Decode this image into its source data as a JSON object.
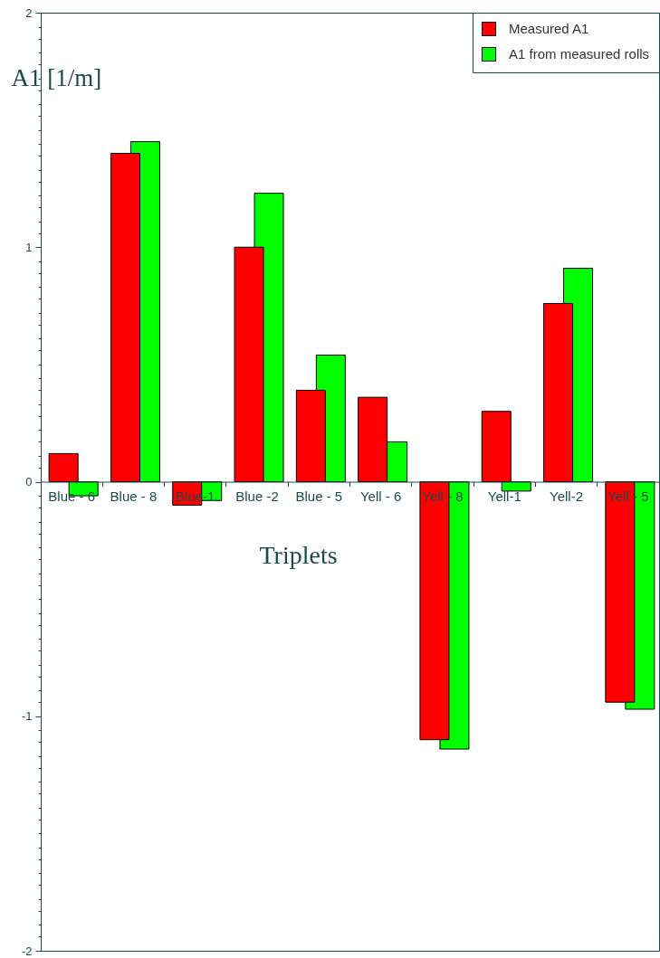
{
  "chart_data": {
    "type": "bar",
    "xlabel": "Triplets",
    "ylabel": "A1 [1/m]",
    "legend": "top right",
    "categories": [
      "Blue - 6",
      "Blue - 8",
      "Blue-1",
      "Blue -2",
      "Blue - 5",
      "Yell - 6",
      "Yell - 8",
      "Yell-1",
      "Yell-2",
      "Yell - 5"
    ],
    "series": [
      {
        "name": "Measured A1",
        "color": "#ff0000",
        "values": [
          0.12,
          1.4,
          -0.1,
          1.0,
          0.39,
          0.36,
          -1.1,
          0.3,
          0.76,
          -0.94
        ]
      },
      {
        "name": "A1 from measured rolls",
        "color": "#00ff00",
        "values": [
          -0.06,
          1.45,
          -0.08,
          1.23,
          0.54,
          0.17,
          -1.14,
          -0.04,
          0.91,
          -0.97
        ]
      }
    ],
    "ylim": [
      -2,
      2
    ],
    "yticks": [
      -2,
      {
        "value": -1.94,
        "label": null
      },
      {
        "value": -1.89,
        "label": null
      },
      {
        "value": -1.83,
        "label": null
      },
      {
        "value": -1.78,
        "label": null
      },
      {
        "value": -1.72,
        "label": null
      },
      {
        "value": -1.67,
        "label": null
      },
      {
        "value": -1.61,
        "label": null
      },
      {
        "value": -1.56,
        "label": null
      },
      {
        "value": -1.5,
        "label": null
      },
      {
        "value": -1.44,
        "label": null
      },
      {
        "value": -1.39,
        "label": null
      },
      {
        "value": -1.33,
        "label": null
      },
      {
        "value": -1.28,
        "label": null
      },
      {
        "value": -1.22,
        "label": null
      },
      {
        "value": -1.17,
        "label": null
      },
      {
        "value": -1.11,
        "label": null
      },
      {
        "value": -1.06,
        "label": null
      },
      -1,
      {
        "value": -0.94,
        "label": null
      },
      {
        "value": -0.89,
        "label": null
      },
      {
        "value": -0.83,
        "label": null
      },
      {
        "value": -0.78,
        "label": null
      },
      {
        "value": -0.72,
        "label": null
      },
      {
        "value": -0.67,
        "label": null
      },
      {
        "value": -0.61,
        "label": null
      },
      {
        "value": -0.56,
        "label": null
      },
      {
        "value": -0.5,
        "label": null
      },
      {
        "value": -0.44,
        "label": null
      },
      {
        "value": -0.39,
        "label": null
      },
      {
        "value": -0.33,
        "label": null
      },
      {
        "value": -0.28,
        "label": null
      },
      {
        "value": -0.22,
        "label": null
      },
      {
        "value": -0.17,
        "label": null
      },
      {
        "value": -0.11,
        "label": null
      },
      {
        "value": -0.06,
        "label": null
      },
      0,
      {
        "value": 0.06,
        "label": null
      },
      {
        "value": 0.11,
        "label": null
      },
      {
        "value": 0.17,
        "label": null
      },
      {
        "value": 0.22,
        "label": null
      },
      {
        "value": 0.28,
        "label": null
      },
      {
        "value": 0.33,
        "label": null
      },
      {
        "value": 0.39,
        "label": null
      },
      {
        "value": 0.44,
        "label": null
      },
      {
        "value": 0.5,
        "label": null
      },
      {
        "value": 0.56,
        "label": null
      },
      {
        "value": 0.61,
        "label": null
      },
      {
        "value": 0.67,
        "label": null
      },
      {
        "value": 0.72,
        "label": null
      },
      {
        "value": 0.78,
        "label": null
      },
      {
        "value": 0.83,
        "label": null
      },
      {
        "value": 0.89,
        "label": null
      },
      {
        "value": 0.94,
        "label": null
      },
      1,
      {
        "value": 1.06,
        "label": null
      },
      {
        "value": 1.11,
        "label": null
      },
      {
        "value": 1.17,
        "label": null
      },
      {
        "value": 1.22,
        "label": null
      },
      {
        "value": 1.28,
        "label": null
      },
      {
        "value": 1.33,
        "label": null
      },
      {
        "value": 1.39,
        "label": null
      },
      {
        "value": 1.44,
        "label": null
      },
      {
        "value": 1.5,
        "label": null
      },
      {
        "value": 1.56,
        "label": null
      },
      {
        "value": 1.61,
        "label": null
      },
      {
        "value": 1.67,
        "label": null
      },
      {
        "value": 1.72,
        "label": null
      },
      {
        "value": 1.78,
        "label": null
      },
      {
        "value": 1.83,
        "label": null
      },
      {
        "value": 1.89,
        "label": null
      },
      {
        "value": 1.94,
        "label": null
      },
      2
    ]
  }
}
